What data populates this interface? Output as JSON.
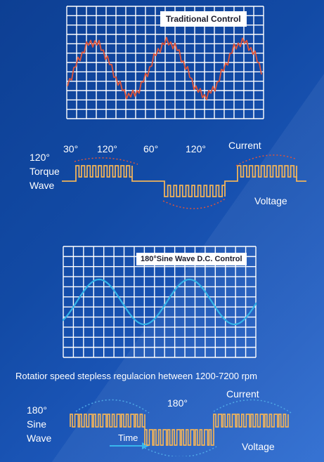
{
  "top_panel": {
    "title": "Traditional Control",
    "angle_labels": [
      "30°",
      "120°",
      "60°",
      "120°"
    ],
    "current_label": "Current",
    "left_label_lines": [
      "120°",
      "Torque",
      "Wave"
    ],
    "voltage_label": "Voltage"
  },
  "bottom_panel": {
    "title": "180°Sine Wave D.C. Control",
    "caption": "Rotatior speed stepless regulacion hetween 1200-7200 rpm",
    "angle_label": "180°",
    "current_label": "Current",
    "left_label_lines": [
      "180°",
      "Sine",
      "Wave"
    ],
    "time_label": "Time",
    "voltage_label": "Voltage"
  },
  "colors": {
    "grid": "#ffffff",
    "traditional_wave": "#e0553a",
    "sine_wave": "#35b4e8",
    "pwm_pulse": "#f0b35a",
    "dotted_envelope_top": "#e0553a",
    "dotted_envelope_bottom": "#4fa8e6",
    "time_arrow": "#38b6ee"
  }
}
